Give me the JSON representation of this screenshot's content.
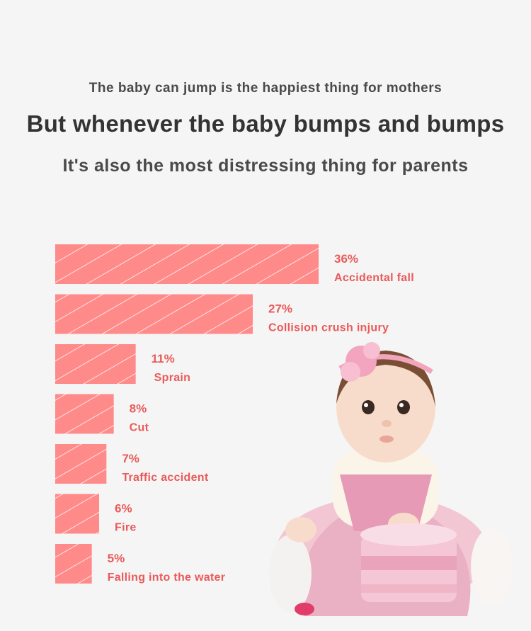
{
  "header": {
    "line1": "The baby can jump is the happiest thing for mothers",
    "line2": "But whenever the baby bumps and bumps",
    "line3": "It's also the most distressing thing for parents"
  },
  "colors": {
    "bar_fill": "#ff8a8a",
    "bar_stripe": "#ffffff",
    "label": "#ea5a5a"
  },
  "chart_data": {
    "type": "bar",
    "orientation": "horizontal",
    "categories": [
      "Accidental fall",
      "Collision crush injury",
      "Sprain",
      "Cut",
      "Traffic accident",
      "Fire",
      "Falling into the water"
    ],
    "values": [
      36,
      27,
      11,
      8,
      7,
      6,
      5
    ],
    "value_labels": [
      "36%",
      "27%",
      "11%",
      "8%",
      "7%",
      "6%",
      "5%"
    ],
    "unit": "%",
    "grid": false,
    "legend": "none"
  },
  "illustration": {
    "name": "baby-with-pink-gift-box"
  }
}
